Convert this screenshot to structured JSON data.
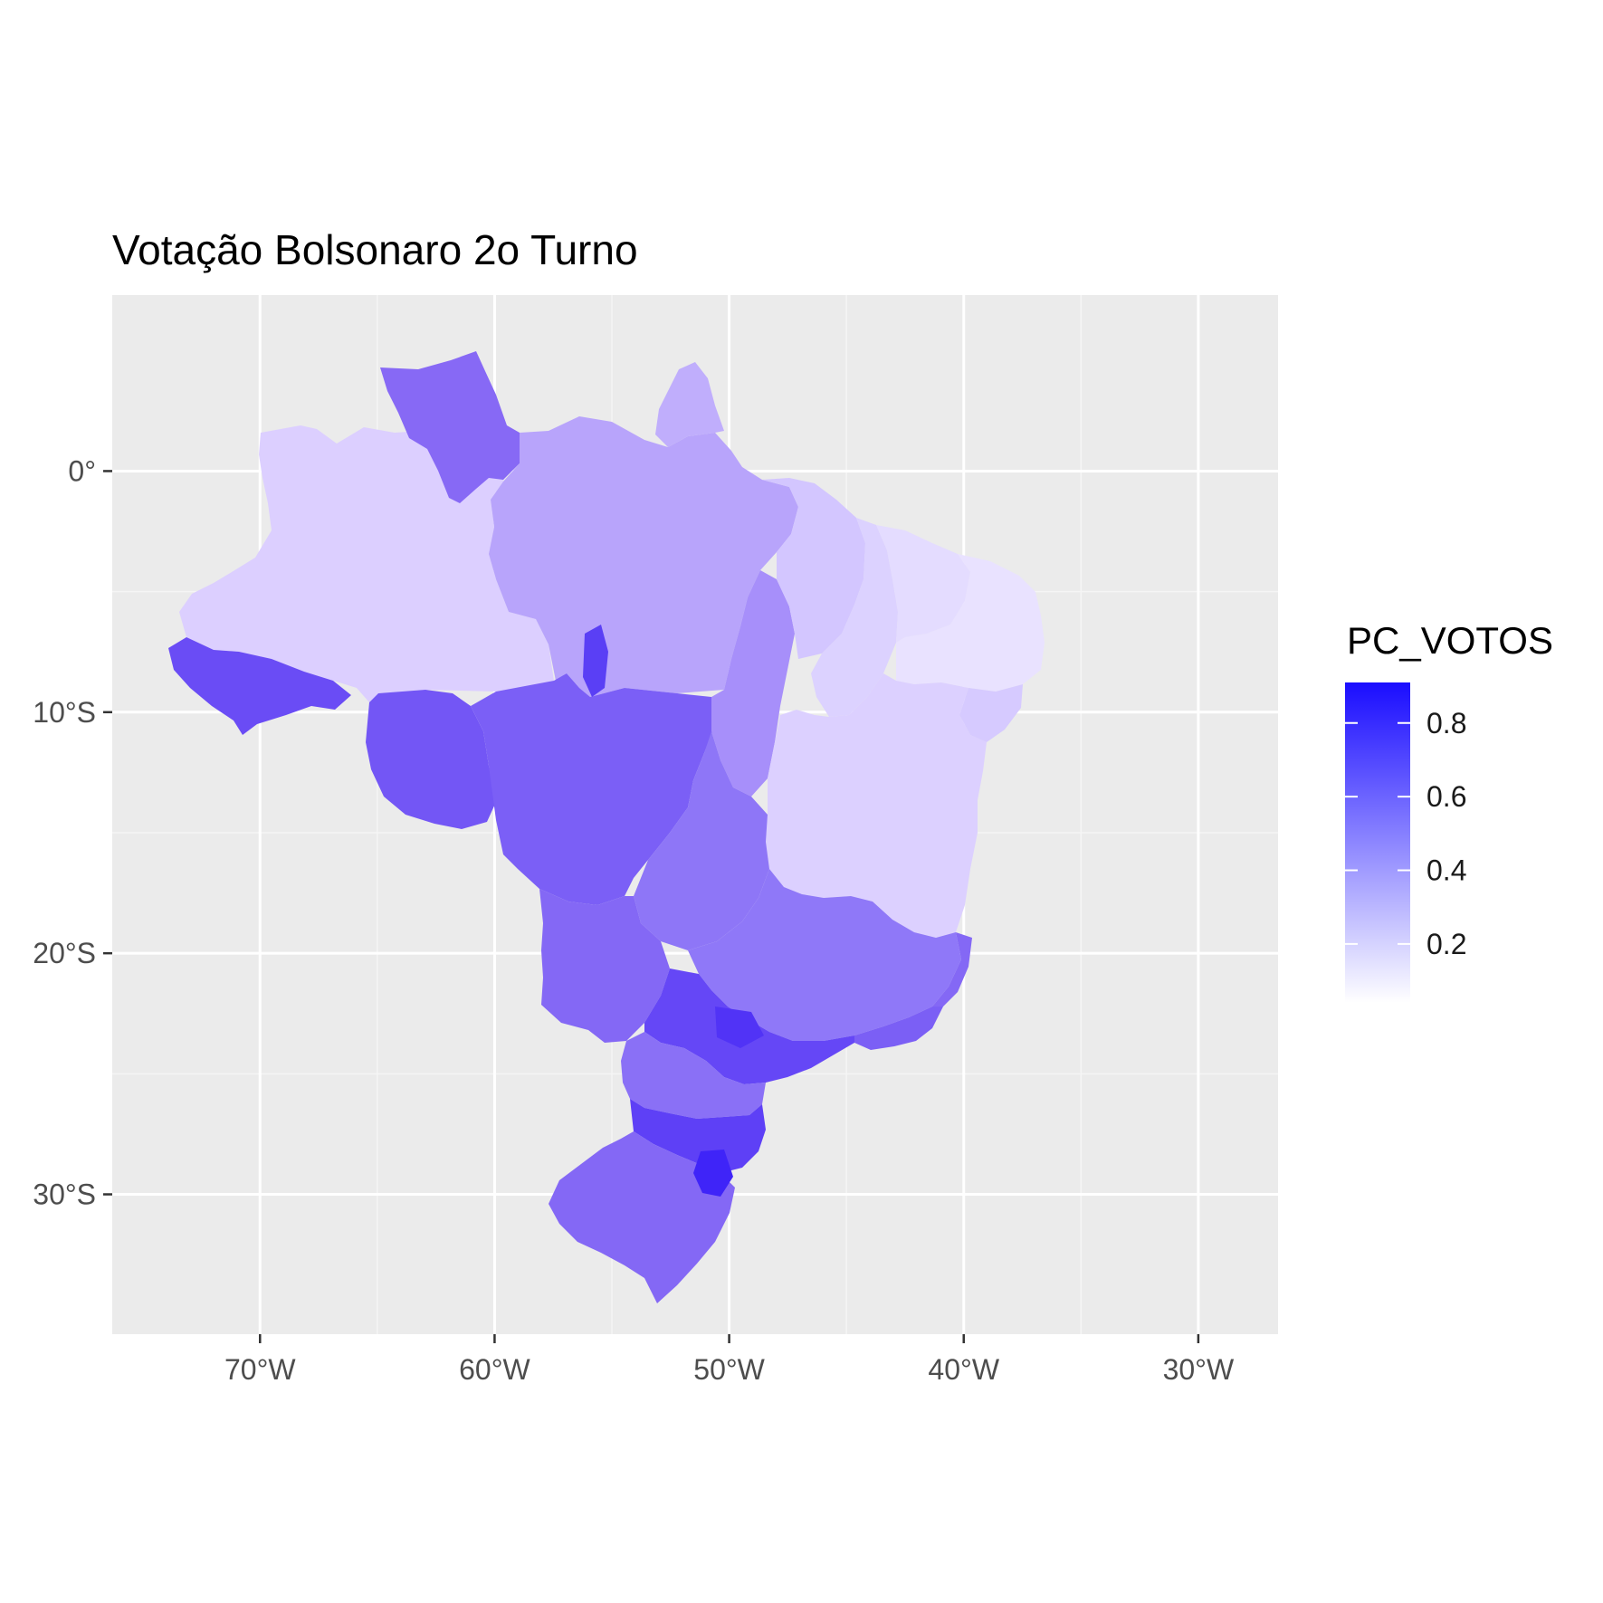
{
  "chart_data": {
    "type": "choropleth",
    "title": "Votação Bolsonaro 2o Turno",
    "xlabel": "",
    "ylabel": "",
    "x_ticks": [
      {
        "value": -70,
        "label": "70°W"
      },
      {
        "value": -60,
        "label": "60°W"
      },
      {
        "value": -50,
        "label": "50°W"
      },
      {
        "value": -40,
        "label": "40°W"
      },
      {
        "value": -30,
        "label": "30°W"
      }
    ],
    "y_ticks": [
      {
        "value": 0,
        "label": "0°"
      },
      {
        "value": -10,
        "label": "10°S"
      },
      {
        "value": -20,
        "label": "20°S"
      },
      {
        "value": -30,
        "label": "30°S"
      }
    ],
    "xlim": [
      -76.3,
      -26.6
    ],
    "ylim": [
      -35.8,
      7.3
    ],
    "grid": true,
    "legend": {
      "title": "PC_VOTOS",
      "position": "right",
      "range": [
        0.04,
        0.91
      ],
      "ticks": [
        {
          "value": 0.2,
          "label": "0.2"
        },
        {
          "value": 0.4,
          "label": "0.4"
        },
        {
          "value": 0.6,
          "label": "0.6"
        },
        {
          "value": 0.8,
          "label": "0.8"
        }
      ],
      "low_color": "#ffffff",
      "high_color": "#1a0dff"
    },
    "regions": [
      {
        "name": "Acre",
        "value": 0.77
      },
      {
        "name": "Amazonas",
        "value": 0.19
      },
      {
        "name": "Roraima",
        "value": 0.72
      },
      {
        "name": "Pará",
        "value": 0.45
      },
      {
        "name": "Amapá",
        "value": 0.5
      },
      {
        "name": "Rondônia",
        "value": 0.72
      },
      {
        "name": "Mato Grosso",
        "value": 0.66
      },
      {
        "name": "Tocantins",
        "value": 0.51
      },
      {
        "name": "Maranhão",
        "value": 0.26
      },
      {
        "name": "Piauí",
        "value": 0.22
      },
      {
        "name": "Ceará",
        "value": 0.29
      },
      {
        "name": "Rio Grande do Norte",
        "value": 0.36
      },
      {
        "name": "Paraíba",
        "value": 0.35
      },
      {
        "name": "Pernambuco",
        "value": 0.33
      },
      {
        "name": "Alagoas",
        "value": 0.4
      },
      {
        "name": "Sergipe",
        "value": 0.32
      },
      {
        "name": "Bahia",
        "value": 0.27
      },
      {
        "name": "Goiás",
        "value": 0.65
      },
      {
        "name": "Distrito Federal",
        "value": 0.7
      },
      {
        "name": "Minas Gerais",
        "value": 0.58
      },
      {
        "name": "Espírito Santo",
        "value": 0.63
      },
      {
        "name": "Rio de Janeiro",
        "value": 0.68
      },
      {
        "name": "São Paulo",
        "value": 0.68
      },
      {
        "name": "Mato Grosso do Sul",
        "value": 0.65
      },
      {
        "name": "Paraná",
        "value": 0.68
      },
      {
        "name": "Santa Catarina",
        "value": 0.76
      },
      {
        "name": "Rio Grande do Sul",
        "value": 0.63
      }
    ]
  }
}
